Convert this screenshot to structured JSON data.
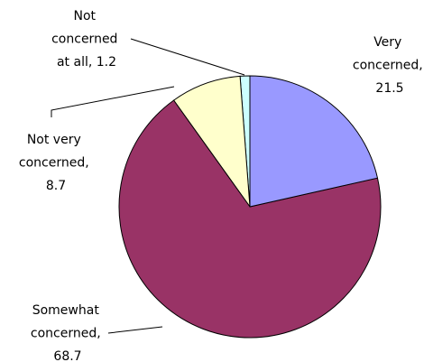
{
  "chart_data": {
    "type": "pie",
    "values": [
      21.5,
      68.7,
      8.7,
      1.2
    ],
    "value_labels": [
      "Very concerned, 21.5",
      "Somewhat concerned, 68.7",
      "Not very concerned, 8.7",
      "Not concerned at all, 1.2"
    ],
    "colors": [
      "#9999ff",
      "#993366",
      "#ffffcc",
      "#ccffff"
    ]
  }
}
